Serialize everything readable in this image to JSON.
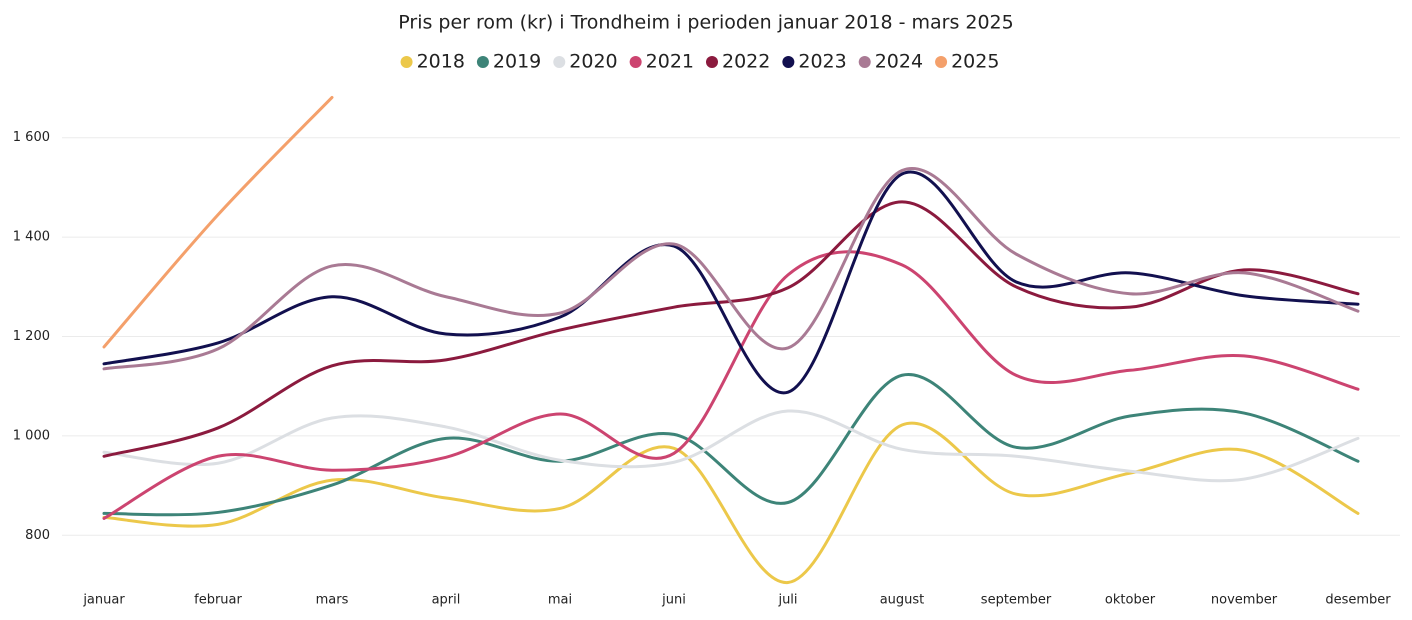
{
  "chart_data": {
    "type": "line",
    "title": "Pris per rom (kr) i Trondheim i perioden januar 2018 - mars 2025",
    "categories": [
      "januar",
      "februar",
      "mars",
      "april",
      "mai",
      "juni",
      "juli",
      "august",
      "september",
      "oktober",
      "november",
      "desember"
    ],
    "ylim": [
      700,
      1700
    ],
    "yticks": [
      800,
      {
        "value": 1000,
        "label": "1 000"
      },
      {
        "value": 1200,
        "label": "1 200"
      },
      {
        "value": 1400,
        "label": "1 400"
      },
      {
        "value": 1600,
        "label": "1 600"
      }
    ],
    "grid": true,
    "legend": "top",
    "series": [
      {
        "name": "2018",
        "color": "#ecc84a",
        "values": [
          836,
          822,
          911,
          875,
          854,
          975,
          705,
          1022,
          883,
          925,
          971,
          844
        ]
      },
      {
        "name": "2019",
        "color": "#3d8478",
        "values": [
          844,
          846,
          901,
          995,
          949,
          1003,
          866,
          1122,
          977,
          1040,
          1046,
          949
        ]
      },
      {
        "name": "2020",
        "color": "#dcdfe3",
        "values": [
          967,
          945,
          1036,
          1018,
          951,
          947,
          1050,
          973,
          959,
          929,
          913,
          995
        ]
      },
      {
        "name": "2021",
        "color": "#cc4470",
        "values": [
          834,
          959,
          931,
          957,
          1044,
          965,
          1324,
          1344,
          1122,
          1132,
          1161,
          1094
        ]
      },
      {
        "name": "2022",
        "color": "#8b1a3e",
        "values": [
          959,
          1016,
          1141,
          1153,
          1213,
          1259,
          1298,
          1471,
          1300,
          1259,
          1334,
          1286
        ]
      },
      {
        "name": "2023",
        "color": "#12104f",
        "values": [
          1145,
          1187,
          1280,
          1205,
          1239,
          1382,
          1088,
          1527,
          1310,
          1328,
          1282,
          1265
        ]
      },
      {
        "name": "2024",
        "color": "#a97a94",
        "values": [
          1135,
          1175,
          1342,
          1280,
          1247,
          1386,
          1177,
          1534,
          1366,
          1286,
          1328,
          1251
        ]
      },
      {
        "name": "2025",
        "color": "#f4a06b",
        "values": [
          1179,
          1445,
          1681,
          null,
          null,
          null,
          null,
          null,
          null,
          null,
          null,
          null
        ]
      }
    ]
  }
}
